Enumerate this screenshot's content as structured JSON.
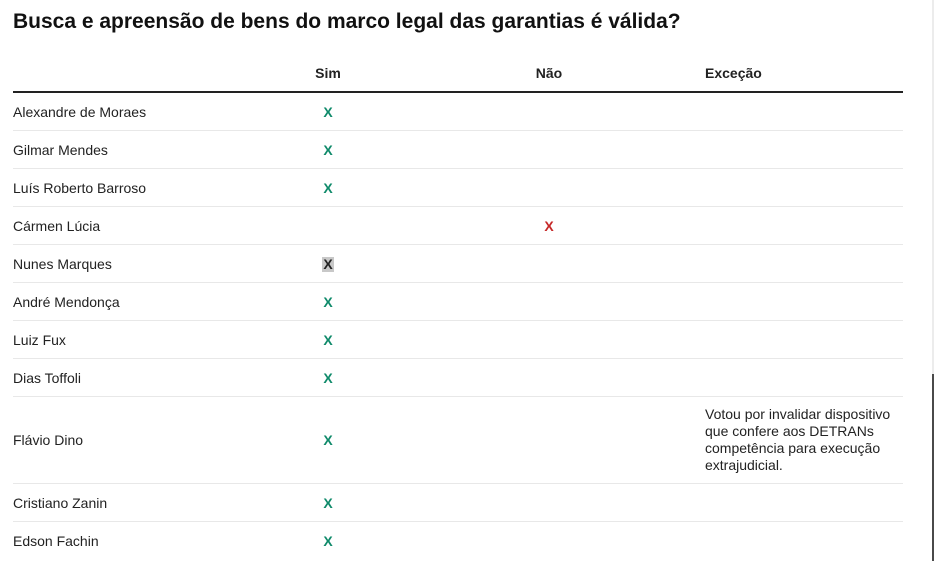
{
  "title": "Busca e apreensão de bens do marco legal das garantias é válida?",
  "table": {
    "headers": {
      "name": "",
      "sim": "Sim",
      "nao": "Não",
      "excecao": "Exceção"
    },
    "rows": [
      {
        "name": "Alexandre de Moraes",
        "sim": "X",
        "nao": "",
        "excecao": ""
      },
      {
        "name": "Gilmar Mendes",
        "sim": "X",
        "nao": "",
        "excecao": ""
      },
      {
        "name": "Luís Roberto Barroso",
        "sim": "X",
        "nao": "",
        "excecao": ""
      },
      {
        "name": "Cármen Lúcia",
        "sim": "",
        "nao": "X",
        "excecao": ""
      },
      {
        "name": "Nunes Marques",
        "sim": "X",
        "nao": "",
        "excecao": "",
        "selected": true
      },
      {
        "name": "André Mendonça",
        "sim": "X",
        "nao": "",
        "excecao": ""
      },
      {
        "name": "Luiz Fux",
        "sim": "X",
        "nao": "",
        "excecao": ""
      },
      {
        "name": "Dias Toffoli",
        "sim": "X",
        "nao": "",
        "excecao": ""
      },
      {
        "name": "Flávio Dino",
        "sim": "X",
        "nao": "",
        "excecao": "Votou por invalidar dispositivo que confere aos DETRANs competência para execução extrajudicial."
      },
      {
        "name": "Cristiano Zanin",
        "sim": "X",
        "nao": "",
        "excecao": ""
      },
      {
        "name": "Edson Fachin",
        "sim": "X",
        "nao": "",
        "excecao": ""
      }
    ]
  },
  "colors": {
    "yes": "#0f8a6a",
    "no": "#c62828",
    "selection": "#c8c8c8"
  }
}
